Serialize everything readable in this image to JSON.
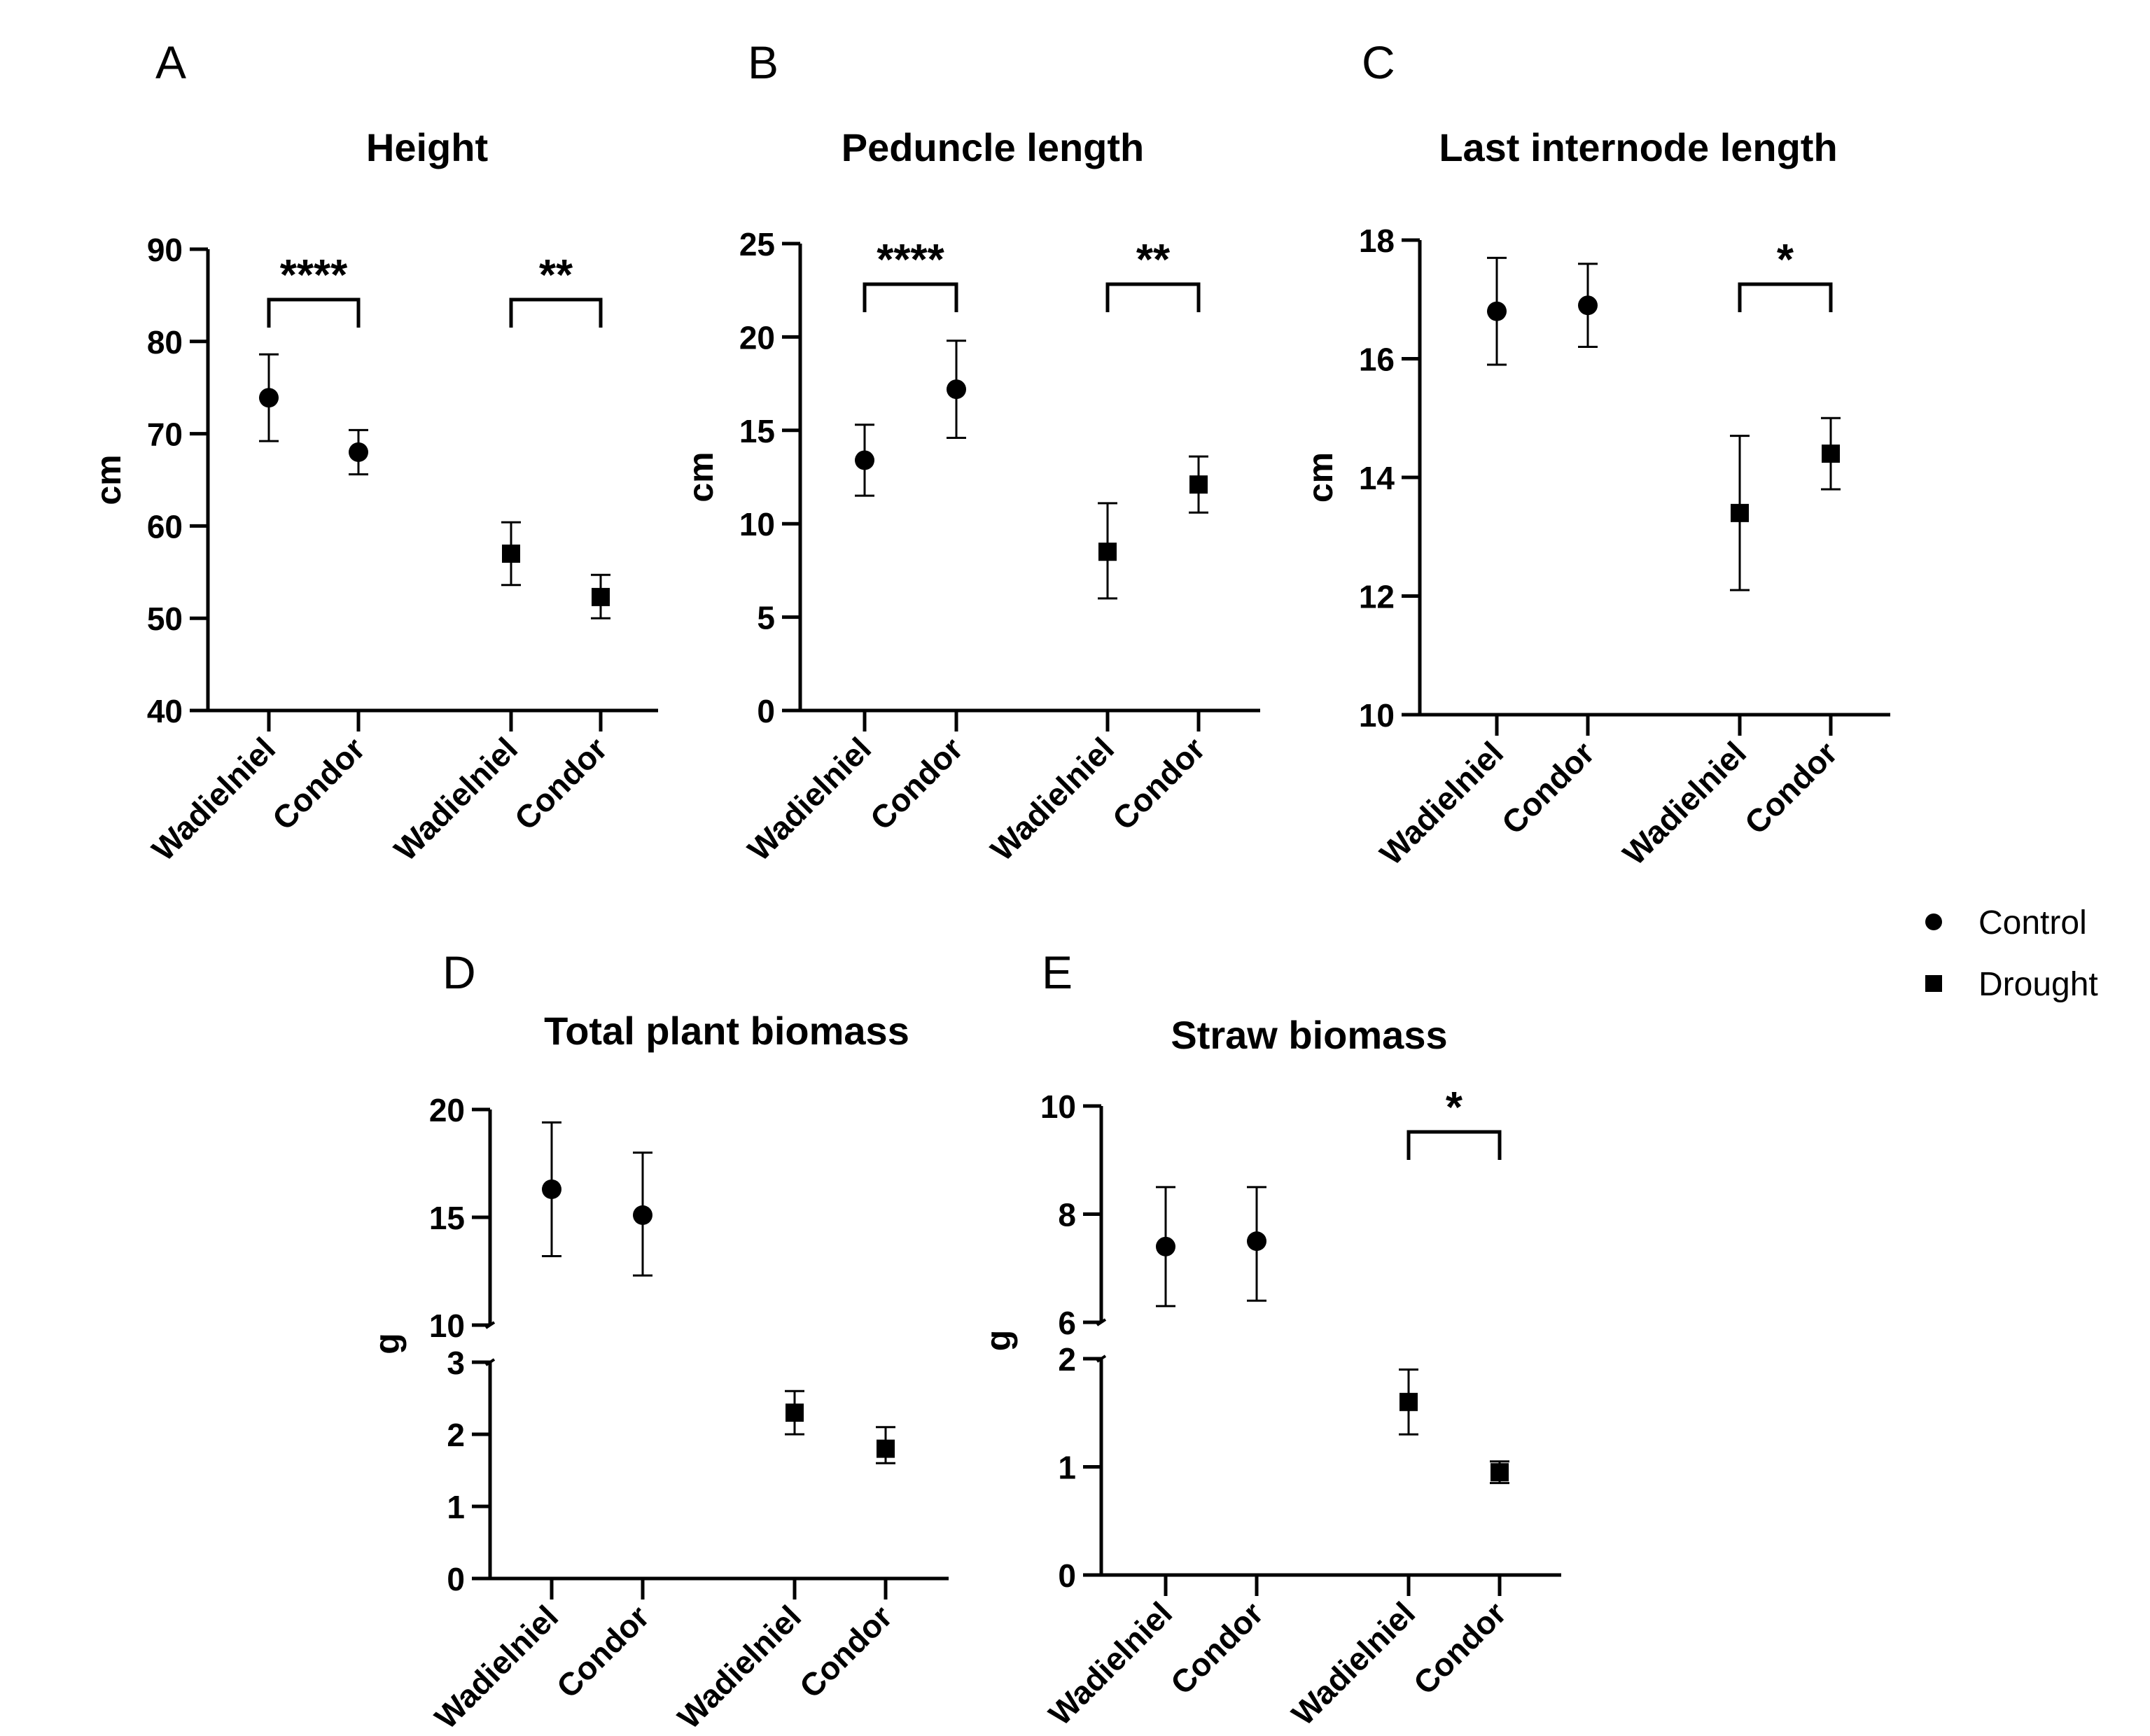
{
  "legend": [
    {
      "label": "Control",
      "marker": "circle"
    },
    {
      "label": "Drought",
      "marker": "square"
    }
  ],
  "chart_data": [
    {
      "panel": "A",
      "type": "scatter",
      "title": "Height",
      "ylabel": "cm",
      "categories": [
        "Wadielniel",
        "Condor",
        "Wadielniel",
        "Condor"
      ],
      "ylim": [
        40,
        90
      ],
      "yticks": [
        40,
        50,
        60,
        70,
        80,
        90
      ],
      "series": [
        {
          "name": "Control",
          "marker": "circle",
          "categories": [
            "Wadielniel",
            "Condor"
          ],
          "values": [
            73.9,
            68.0
          ],
          "err_low": [
            69.2,
            65.6
          ],
          "err_high": [
            78.6,
            70.4
          ]
        },
        {
          "name": "Drought",
          "marker": "square",
          "categories": [
            "Wadielniel",
            "Condor"
          ],
          "values": [
            57.0,
            52.3
          ],
          "err_low": [
            53.6,
            50.0
          ],
          "err_high": [
            60.4,
            54.7
          ]
        }
      ],
      "significance": [
        {
          "between": [
            0,
            1
          ],
          "label": "****"
        },
        {
          "between": [
            2,
            3
          ],
          "label": "**"
        }
      ]
    },
    {
      "panel": "B",
      "type": "scatter",
      "title": "Peduncle length",
      "ylabel": "cm",
      "categories": [
        "Wadielniel",
        "Condor",
        "Wadielniel",
        "Condor"
      ],
      "ylim": [
        0,
        25
      ],
      "yticks": [
        0,
        5,
        10,
        15,
        20,
        25
      ],
      "series": [
        {
          "name": "Control",
          "marker": "circle",
          "categories": [
            "Wadielniel",
            "Condor"
          ],
          "values": [
            13.4,
            17.2
          ],
          "err_low": [
            11.5,
            14.6
          ],
          "err_high": [
            15.3,
            19.8
          ]
        },
        {
          "name": "Drought",
          "marker": "square",
          "categories": [
            "Wadielniel",
            "Condor"
          ],
          "values": [
            8.5,
            12.1
          ],
          "err_low": [
            6.0,
            10.6
          ],
          "err_high": [
            11.1,
            13.6
          ]
        }
      ],
      "significance": [
        {
          "between": [
            0,
            1
          ],
          "label": "****"
        },
        {
          "between": [
            2,
            3
          ],
          "label": "**"
        }
      ]
    },
    {
      "panel": "C",
      "type": "scatter",
      "title": "Last internode length",
      "ylabel": "cm",
      "categories": [
        "Wadielniel",
        "Condor",
        "Wadielniel",
        "Condor"
      ],
      "ylim": [
        10,
        18
      ],
      "yticks": [
        10,
        12,
        14,
        16,
        18
      ],
      "series": [
        {
          "name": "Control",
          "marker": "circle",
          "categories": [
            "Wadielniel",
            "Condor"
          ],
          "values": [
            16.8,
            16.9
          ],
          "err_low": [
            15.9,
            16.2
          ],
          "err_high": [
            17.7,
            17.6
          ]
        },
        {
          "name": "Drought",
          "marker": "square",
          "categories": [
            "Wadielniel",
            "Condor"
          ],
          "values": [
            13.4,
            14.4
          ],
          "err_low": [
            12.1,
            13.8
          ],
          "err_high": [
            14.7,
            15.0
          ]
        }
      ],
      "significance": [
        {
          "between": [
            2,
            3
          ],
          "label": "*"
        }
      ]
    },
    {
      "panel": "D",
      "type": "scatter",
      "title": "Total plant biomass",
      "ylabel": "g",
      "categories": [
        "Wadielniel",
        "Condor",
        "Wadielniel",
        "Condor"
      ],
      "axis_break": {
        "upper": {
          "ylim": [
            10,
            20
          ],
          "yticks": [
            10,
            15,
            20
          ]
        },
        "lower": {
          "ylim": [
            0,
            3
          ],
          "yticks": [
            0,
            1,
            2,
            3
          ]
        }
      },
      "series": [
        {
          "name": "Control",
          "marker": "circle",
          "categories": [
            "Wadielniel",
            "Condor"
          ],
          "values": [
            16.3,
            15.1
          ],
          "err_low": [
            13.2,
            12.3
          ],
          "err_high": [
            19.4,
            18.0
          ]
        },
        {
          "name": "Drought",
          "marker": "square",
          "categories": [
            "Wadielniel",
            "Condor"
          ],
          "values": [
            2.3,
            1.8
          ],
          "err_low": [
            2.0,
            1.6
          ],
          "err_high": [
            2.6,
            2.1
          ]
        }
      ],
      "significance": []
    },
    {
      "panel": "E",
      "type": "scatter",
      "title": "Straw biomass",
      "ylabel": "g",
      "categories": [
        "Wadielniel",
        "Condor",
        "Wadielniel",
        "Condor"
      ],
      "axis_break": {
        "upper": {
          "ylim": [
            6,
            10
          ],
          "yticks": [
            6,
            8,
            10
          ]
        },
        "lower": {
          "ylim": [
            0,
            2
          ],
          "yticks": [
            0,
            1,
            2
          ]
        }
      },
      "series": [
        {
          "name": "Control",
          "marker": "circle",
          "categories": [
            "Wadielniel",
            "Condor"
          ],
          "values": [
            7.4,
            7.5
          ],
          "err_low": [
            6.3,
            6.4
          ],
          "err_high": [
            8.5,
            8.5
          ]
        },
        {
          "name": "Drought",
          "marker": "square",
          "categories": [
            "Wadielniel",
            "Condor"
          ],
          "values": [
            1.6,
            0.95
          ],
          "err_low": [
            1.3,
            0.85
          ],
          "err_high": [
            1.9,
            1.05
          ]
        }
      ],
      "significance": [
        {
          "between": [
            2,
            3
          ],
          "label": "*"
        }
      ]
    }
  ]
}
